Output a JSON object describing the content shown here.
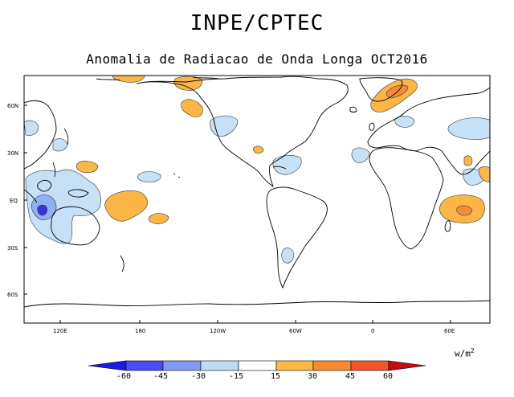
{
  "title": "INPE/CPTEC",
  "subtitle": "Anomalia de Radiacao de Onda Longa OCT2016",
  "units": "w/m",
  "units_power": "2",
  "latitude_labels": [
    "60N",
    "30N",
    "EQ",
    "30S",
    "60S"
  ],
  "longitude_labels": [
    "120E",
    "180",
    "120W",
    "60W",
    "0",
    "60E"
  ],
  "colorbar": {
    "levels": [
      "-60",
      "-45",
      "-30",
      "-15",
      "15",
      "30",
      "45",
      "60"
    ],
    "colors": [
      "#1a1ae6",
      "#4b4bf2",
      "#7f9cf5",
      "#bfdcf7",
      "#ffffff",
      "#fcb646",
      "#fa8a32",
      "#f3562a",
      "#c40e0e"
    ]
  },
  "anomaly_colors": {
    "negative_light": "#c6e0f7",
    "negative_medium": "#8fb0f2",
    "negative_strong": "#3535dd",
    "positive_light": "#fcb646",
    "positive_medium": "#f58a3a"
  }
}
